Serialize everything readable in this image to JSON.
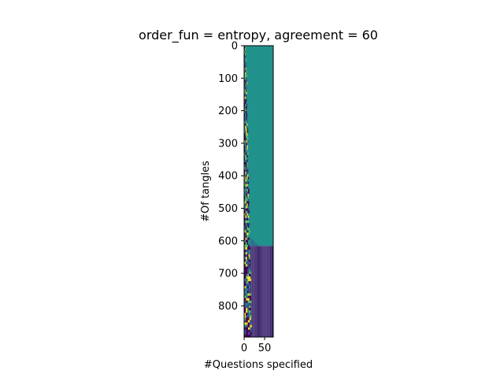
{
  "chart_data": {
    "type": "heatmap",
    "title": "order_fun = entropy, agreement = 60",
    "xlabel": "#Questions specified",
    "ylabel": "#Of tangles",
    "xlim": [
      0,
      71
    ],
    "ylim": [
      0,
      896
    ],
    "y_inverted": true,
    "x_ticks": [
      0,
      50
    ],
    "y_ticks": [
      0,
      100,
      200,
      300,
      400,
      500,
      600,
      700,
      800
    ],
    "colormap": "viridis",
    "colors": {
      "fill": "#21918c",
      "dark": "#440154",
      "navy": "#3b528b",
      "green": "#5ec962",
      "yellow": "#fde725"
    },
    "regions": [
      {
        "name": "upper-fill",
        "y_range": [
          0,
          616
        ],
        "dominant": "fill"
      },
      {
        "name": "lower-stripes",
        "y_range": [
          616,
          896
        ],
        "pattern": "alternating dark/navy vertical stripes"
      }
    ],
    "grid": false,
    "legend": "none"
  }
}
